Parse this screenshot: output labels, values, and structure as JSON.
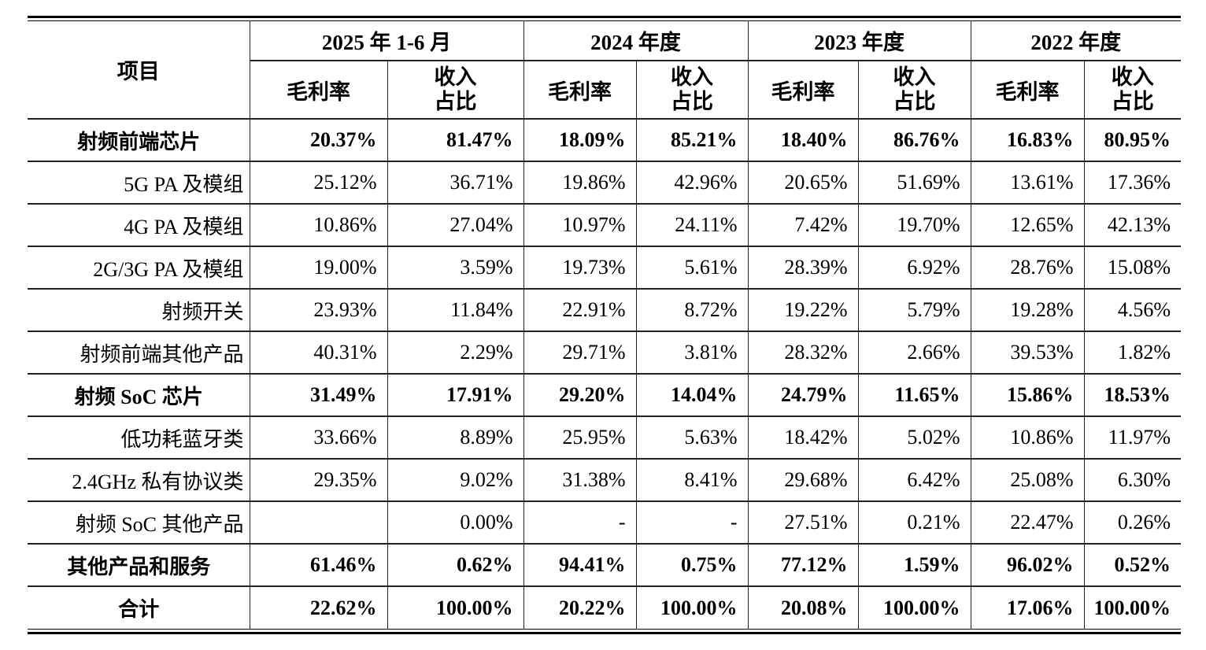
{
  "table": {
    "item_header": "项目",
    "periods": [
      "2025 年 1-6 月",
      "2024 年度",
      "2023 年度",
      "2022 年度"
    ],
    "metrics": [
      "毛利率",
      "收入\n占比"
    ],
    "rows": [
      {
        "label": "射频前端芯片",
        "bold": true,
        "values": [
          "20.37%",
          "81.47%",
          "18.09%",
          "85.21%",
          "18.40%",
          "86.76%",
          "16.83%",
          "80.95%"
        ]
      },
      {
        "label": "5G PA 及模组",
        "bold": false,
        "values": [
          "25.12%",
          "36.71%",
          "19.86%",
          "42.96%",
          "20.65%",
          "51.69%",
          "13.61%",
          "17.36%"
        ]
      },
      {
        "label": "4G PA 及模组",
        "bold": false,
        "values": [
          "10.86%",
          "27.04%",
          "10.97%",
          "24.11%",
          "7.42%",
          "19.70%",
          "12.65%",
          "42.13%"
        ]
      },
      {
        "label": "2G/3G PA 及模组",
        "bold": false,
        "values": [
          "19.00%",
          "3.59%",
          "19.73%",
          "5.61%",
          "28.39%",
          "6.92%",
          "28.76%",
          "15.08%"
        ]
      },
      {
        "label": "射频开关",
        "bold": false,
        "values": [
          "23.93%",
          "11.84%",
          "22.91%",
          "8.72%",
          "19.22%",
          "5.79%",
          "19.28%",
          "4.56%"
        ]
      },
      {
        "label": "射频前端其他产品",
        "bold": false,
        "values": [
          "40.31%",
          "2.29%",
          "29.71%",
          "3.81%",
          "28.32%",
          "2.66%",
          "39.53%",
          "1.82%"
        ]
      },
      {
        "label": "射频 SoC 芯片",
        "bold": true,
        "values": [
          "31.49%",
          "17.91%",
          "29.20%",
          "14.04%",
          "24.79%",
          "11.65%",
          "15.86%",
          "18.53%"
        ]
      },
      {
        "label": "低功耗蓝牙类",
        "bold": false,
        "values": [
          "33.66%",
          "8.89%",
          "25.95%",
          "5.63%",
          "18.42%",
          "5.02%",
          "10.86%",
          "11.97%"
        ]
      },
      {
        "label": "2.4GHz 私有协议类",
        "bold": false,
        "values": [
          "29.35%",
          "9.02%",
          "31.38%",
          "8.41%",
          "29.68%",
          "6.42%",
          "25.08%",
          "6.30%"
        ]
      },
      {
        "label": "射频 SoC 其他产品",
        "bold": false,
        "values": [
          "",
          "0.00%",
          "-",
          "-",
          "27.51%",
          "0.21%",
          "22.47%",
          "0.26%"
        ]
      },
      {
        "label": "其他产品和服务",
        "bold": true,
        "values": [
          "61.46%",
          "0.62%",
          "94.41%",
          "0.75%",
          "77.12%",
          "1.59%",
          "96.02%",
          "0.52%"
        ]
      },
      {
        "label": "合计",
        "bold": true,
        "values": [
          "22.62%",
          "100.00%",
          "20.22%",
          "100.00%",
          "20.08%",
          "100.00%",
          "17.06%",
          "100.00%"
        ]
      }
    ]
  },
  "colors": {
    "text": "#000000",
    "grid_lines": "#222222",
    "background": "#ffffff"
  }
}
